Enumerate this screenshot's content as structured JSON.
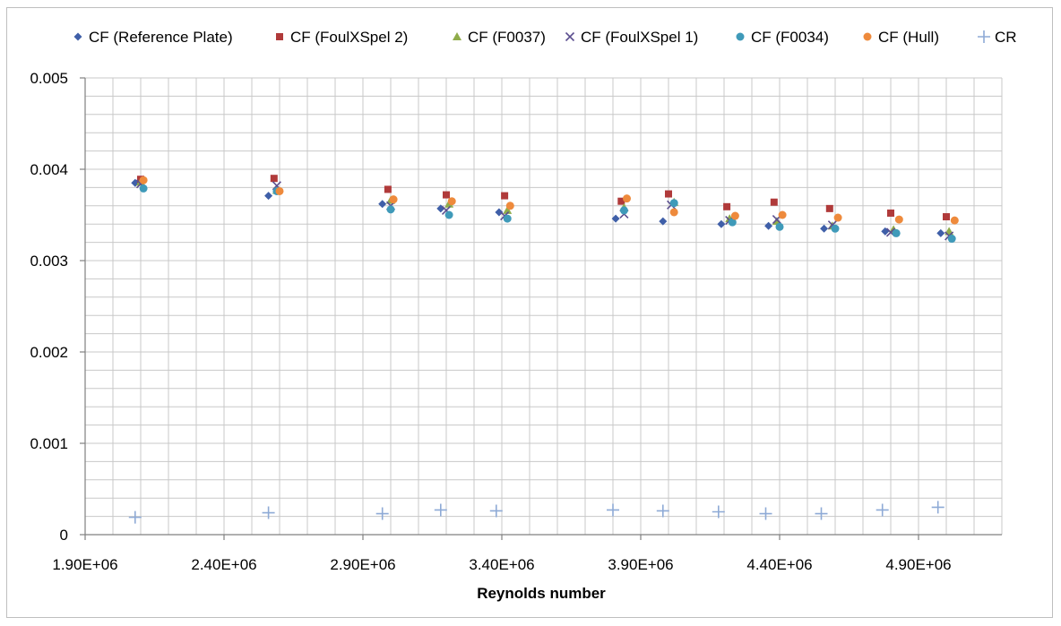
{
  "chart_data": {
    "type": "scatter",
    "title": "",
    "xlabel": "Reynolds number",
    "ylabel": "",
    "xlim": [
      1900000,
      5200000
    ],
    "ylim": [
      0,
      0.005
    ],
    "x_ticks": [
      1900000,
      2400000,
      2900000,
      3400000,
      3900000,
      4400000,
      4900000
    ],
    "x_tick_labels": [
      "1.90E+06",
      "2.40E+06",
      "2.90E+06",
      "3.40E+06",
      "3.90E+06",
      "4.40E+06",
      "4.90E+06"
    ],
    "y_ticks": [
      0,
      0.001,
      0.002,
      0.003,
      0.004,
      0.005
    ],
    "y_tick_labels": [
      "0",
      "0.001",
      "0.002",
      "0.003",
      "0.004",
      "0.005"
    ],
    "grid": true,
    "legend_position": "top",
    "series": [
      {
        "name": "CF (Reference Plate)",
        "marker": "diamond",
        "color": "#3f5fa8",
        "x": [
          2080000,
          2560000,
          2970000,
          3180000,
          3390000,
          3810000,
          3980000,
          4190000,
          4360000,
          4560000,
          4780000,
          4980000
        ],
        "y": [
          0.00385,
          0.00371,
          0.00362,
          0.00357,
          0.00353,
          0.00346,
          0.00343,
          0.0034,
          0.00338,
          0.00335,
          0.00332,
          0.0033
        ]
      },
      {
        "name": "CF (FoulXSpel 2)",
        "marker": "square",
        "color": "#b03a3a",
        "x": [
          2100000,
          2580000,
          2990000,
          3200000,
          3410000,
          3830000,
          4000000,
          4210000,
          4380000,
          4580000,
          4800000,
          5000000
        ],
        "y": [
          0.00389,
          0.0039,
          0.00378,
          0.00372,
          0.00371,
          0.00365,
          0.00373,
          0.00359,
          0.00364,
          0.00357,
          0.00352,
          0.00348
        ]
      },
      {
        "name": "CF (F0037)",
        "marker": "triangle",
        "color": "#8fac4a",
        "x": [
          2100000,
          2590000,
          3000000,
          3210000,
          3420000,
          3840000,
          4020000,
          4220000,
          4390000,
          4590000,
          4810000,
          5010000
        ],
        "y": [
          0.00386,
          0.00377,
          0.00366,
          0.00362,
          0.00355,
          0.00358,
          0.00364,
          0.00346,
          0.00343,
          0.00338,
          0.00334,
          0.00332
        ]
      },
      {
        "name": "CF (FoulXSpel 1)",
        "marker": "x",
        "color": "#5b4e8f",
        "x": [
          2100000,
          2590000,
          3000000,
          3200000,
          3410000,
          3840000,
          4010000,
          4220000,
          4390000,
          4590000,
          4800000,
          5010000
        ],
        "y": [
          0.00384,
          0.00382,
          0.0036,
          0.00355,
          0.00349,
          0.00351,
          0.00361,
          0.00344,
          0.00345,
          0.00339,
          0.00331,
          0.00327
        ]
      },
      {
        "name": "CF (F0034)",
        "marker": "circle",
        "color": "#3f9ab9",
        "x": [
          2110000,
          2590000,
          3000000,
          3210000,
          3420000,
          3840000,
          4020000,
          4230000,
          4400000,
          4600000,
          4820000,
          5020000
        ],
        "y": [
          0.00379,
          0.00376,
          0.00356,
          0.0035,
          0.00346,
          0.00355,
          0.00363,
          0.00342,
          0.00337,
          0.00335,
          0.0033,
          0.00324
        ]
      },
      {
        "name": "CF (Hull)",
        "marker": "circle",
        "color": "#ee8a3c",
        "x": [
          2110000,
          2600000,
          3010000,
          3220000,
          3430000,
          3850000,
          4020000,
          4240000,
          4410000,
          4610000,
          4830000,
          5030000
        ],
        "y": [
          0.00388,
          0.00376,
          0.00367,
          0.00365,
          0.0036,
          0.00368,
          0.00353,
          0.00349,
          0.0035,
          0.00347,
          0.00345,
          0.00344
        ]
      },
      {
        "name": "CR",
        "marker": "plus",
        "color": "#8eaad6",
        "x": [
          2080000,
          2560000,
          2970000,
          3180000,
          3380000,
          3800000,
          3980000,
          4180000,
          4350000,
          4550000,
          4770000,
          4970000
        ],
        "y": [
          0.00019,
          0.00024,
          0.00023,
          0.00027,
          0.00026,
          0.00027,
          0.00026,
          0.00025,
          0.00023,
          0.00023,
          0.00027,
          0.0003
        ]
      }
    ]
  }
}
